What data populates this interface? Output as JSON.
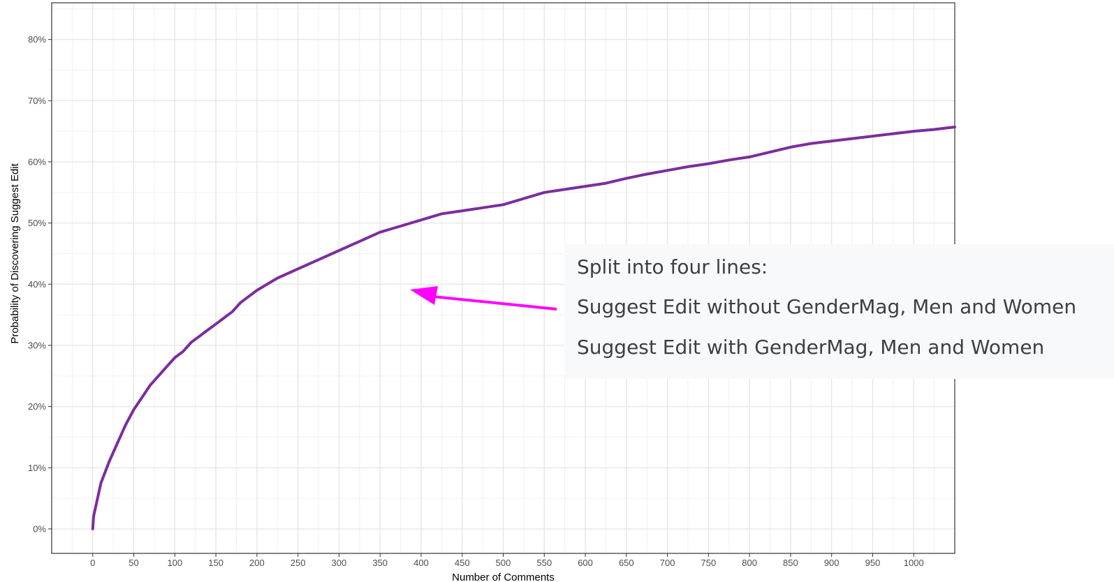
{
  "chart_data": {
    "type": "line",
    "title": "",
    "xlabel": "Number of Comments",
    "ylabel": "Probability of Discovering Suggest Edit",
    "xlim": [
      -50,
      1050
    ],
    "ylim": [
      -4,
      86
    ],
    "x_ticks": [
      0,
      50,
      100,
      150,
      200,
      250,
      300,
      350,
      400,
      450,
      500,
      550,
      600,
      650,
      700,
      750,
      800,
      850,
      900,
      950,
      1000
    ],
    "y_ticks": [
      0,
      10,
      20,
      30,
      40,
      50,
      60,
      70,
      80
    ],
    "y_tick_labels": [
      "0%",
      "10%",
      "20%",
      "30%",
      "40%",
      "50%",
      "60%",
      "70%",
      "80%"
    ],
    "grid": true,
    "line_color": "#7b2d9e",
    "series": [
      {
        "x": [
          0,
          1,
          5,
          10,
          20,
          30,
          40,
          50,
          60,
          70,
          80,
          90,
          100,
          110,
          120,
          130,
          140,
          150,
          160,
          170,
          180,
          190,
          200,
          225,
          250,
          275,
          300,
          325,
          350,
          375,
          400,
          425,
          450,
          475,
          500,
          525,
          550,
          575,
          600,
          625,
          650,
          675,
          700,
          725,
          750,
          775,
          800,
          825,
          850,
          875,
          900,
          925,
          950,
          975,
          1000,
          1025,
          1050
        ],
        "y": [
          0,
          2,
          4.5,
          7.5,
          11,
          14,
          17,
          19.5,
          21.5,
          23.5,
          25,
          26.5,
          28,
          29,
          30.5,
          31.5,
          32.5,
          33.5,
          34.5,
          35.5,
          37,
          38,
          39,
          41,
          42.5,
          44,
          45.5,
          47,
          48.5,
          49.5,
          50.5,
          51.5,
          52,
          52.5,
          53,
          54,
          55,
          55.5,
          56,
          56.5,
          57.3,
          58,
          58.6,
          59.2,
          59.7,
          60.3,
          60.8,
          61.6,
          62.4,
          63,
          63.4,
          63.8,
          64.2,
          64.6,
          65,
          65.3,
          65.7
        ]
      }
    ]
  },
  "annotation": {
    "lines": [
      "Split into four lines:",
      "Suggest Edit without GenderMag, Men and Women",
      "Suggest Edit with GenderMag, Men and Women"
    ],
    "arrow_color": "#ff00ff",
    "background": "#f8f9fa"
  }
}
